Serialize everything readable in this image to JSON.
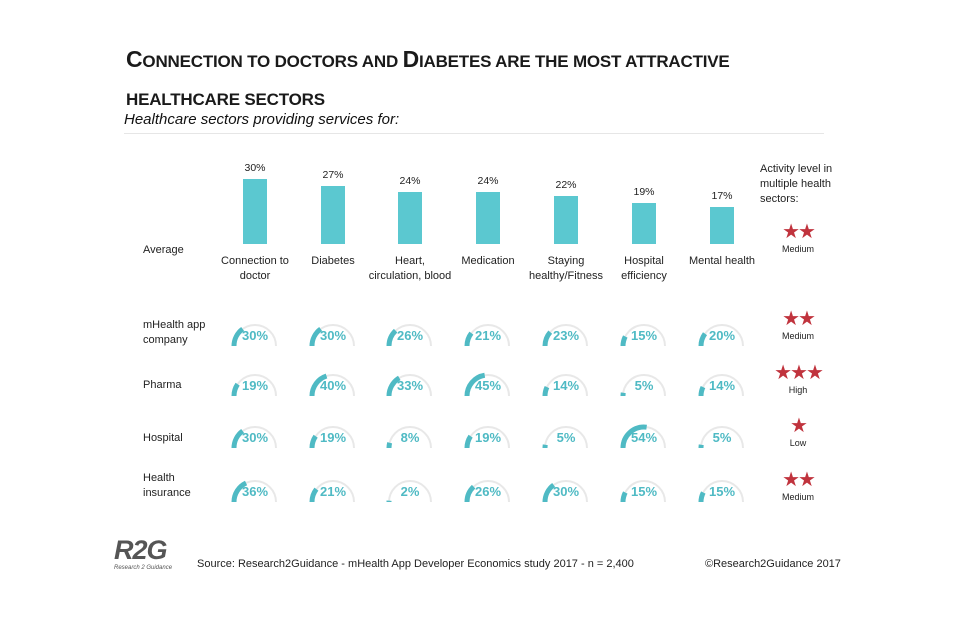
{
  "title_line1": "Connection to doctors and Diabetes are the most attractive",
  "title_line2": "healthcare sectors",
  "subtitle": "Healthcare sectors providing services for:",
  "activity_header": "Activity level in multiple health sectors:",
  "source": "Source: Research2Guidance - mHealth App Developer Economics study 2017 - n = 2,400",
  "copyright": "©Research2Guidance 2017",
  "logo": {
    "main": "R2G",
    "sub": "Research 2 Guidance"
  },
  "colors": {
    "bar": "#5bc8d0",
    "gauge_fill": "#4fbac4",
    "gauge_track": "#e8e8e8",
    "star": "#c0333d"
  },
  "chart_data": {
    "type": "bar",
    "categories": [
      "Connection to doctor",
      "Diabetes",
      "Heart, circulation, blood",
      "Medication",
      "Staying healthy/Fitness",
      "Hospital efficiency",
      "Mental health"
    ],
    "average": {
      "label": "Average",
      "values": [
        30,
        27,
        24,
        24,
        22,
        19,
        17
      ],
      "value_labels": [
        "30%",
        "27%",
        "24%",
        "24%",
        "22%",
        "19%",
        "17%"
      ],
      "activity_stars": 2,
      "activity_label": "Medium"
    },
    "groups": [
      {
        "label": "mHealth app company",
        "values": [
          30,
          30,
          26,
          21,
          23,
          15,
          20
        ],
        "value_labels": [
          "30%",
          "30%",
          "26%",
          "21%",
          "23%",
          "15%",
          "20%"
        ],
        "activity_stars": 2,
        "activity_label": "Medium"
      },
      {
        "label": "Pharma",
        "values": [
          19,
          40,
          33,
          45,
          14,
          5,
          14
        ],
        "value_labels": [
          "19%",
          "40%",
          "33%",
          "45%",
          "14%",
          "5%",
          "14%"
        ],
        "activity_stars": 3,
        "activity_label": "High"
      },
      {
        "label": "Hospital",
        "values": [
          30,
          19,
          8,
          19,
          5,
          54,
          5
        ],
        "value_labels": [
          "30%",
          "19%",
          "8%",
          "19%",
          "5%",
          "54%",
          "5%"
        ],
        "activity_stars": 1,
        "activity_label": "Low"
      },
      {
        "label": "Health insurance",
        "values": [
          36,
          21,
          2,
          26,
          30,
          15,
          15
        ],
        "value_labels": [
          "36%",
          "21%",
          "2%",
          "26%",
          "30%",
          "15%",
          "15%"
        ],
        "activity_stars": 2,
        "activity_label": "Medium"
      }
    ],
    "gauge_max": 100
  }
}
